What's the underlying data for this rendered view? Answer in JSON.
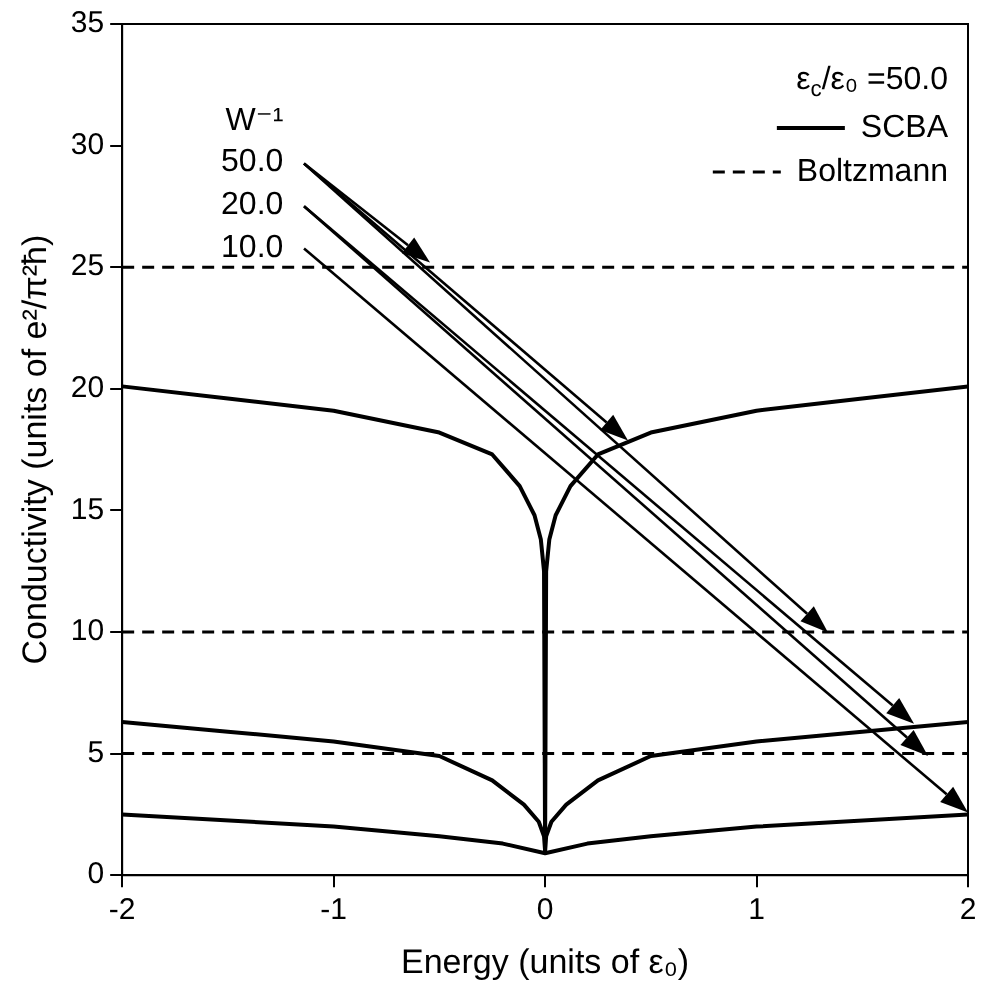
{
  "chart_data": {
    "type": "line",
    "xlabel": "Energy (units of ε₀)",
    "ylabel": "Conductivity (units of e²/π²ħ)",
    "legend_title": "ε$_{c}$/ε₀ =50.0",
    "legend": "top right",
    "grid": false,
    "marker": "none",
    "xlim": [
      -2,
      2
    ],
    "xticks": [
      -2,
      -1,
      0,
      1,
      2
    ],
    "ylim": [
      0,
      35
    ],
    "yticks": [
      0,
      5,
      10,
      15,
      20,
      25,
      30,
      35
    ],
    "annotations": [
      "W⁻¹",
      "50.0",
      "20.0",
      "10.0"
    ],
    "series": [
      {
        "name": "SCBA",
        "color": "#000000",
        "line_style": "solid",
        "x": [
          -2,
          -1.5,
          -1,
          -0.5,
          -0.25,
          -0.12,
          -0.05,
          -0.02,
          -0.005,
          0,
          0.005,
          0.02,
          0.05,
          0.12,
          0.25,
          0.5,
          1,
          1.5,
          2
        ],
        "values": [
          20.1,
          19.6,
          19.1,
          18.2,
          17.3,
          16.0,
          14.8,
          13.8,
          12.5,
          1.0,
          12.5,
          13.8,
          14.8,
          16.0,
          17.3,
          18.2,
          19.1,
          19.6,
          20.1
        ]
      },
      {
        "color": "#000000",
        "line_style": "solid",
        "x": [
          -2,
          -1.5,
          -1,
          -0.5,
          -0.25,
          -0.1,
          -0.03,
          -0.005,
          0,
          0.005,
          0.03,
          0.1,
          0.25,
          0.5,
          1,
          1.5,
          2
        ],
        "values": [
          6.3,
          5.9,
          5.5,
          4.9,
          3.9,
          2.9,
          2.2,
          1.6,
          1.0,
          1.6,
          2.2,
          2.9,
          3.9,
          4.9,
          5.5,
          5.9,
          6.3
        ]
      },
      {
        "color": "#000000",
        "line_style": "solid",
        "x": [
          -2,
          -1,
          -0.5,
          -0.2,
          0,
          0.2,
          0.5,
          1,
          2
        ],
        "values": [
          2.5,
          2.0,
          1.6,
          1.3,
          0.9,
          1.3,
          1.6,
          2.0,
          2.5
        ]
      },
      {
        "name": "Boltzmann",
        "color": "#000000",
        "line_style": "dashed",
        "x": [
          -2,
          2
        ],
        "values": [
          25,
          25
        ]
      },
      {
        "color": "#000000",
        "line_style": "dashed",
        "x": [
          -2,
          2
        ],
        "values": [
          10,
          10
        ]
      },
      {
        "color": "#000000",
        "line_style": "dashed",
        "x": [
          -2,
          2
        ],
        "values": [
          5,
          5
        ]
      }
    ]
  }
}
